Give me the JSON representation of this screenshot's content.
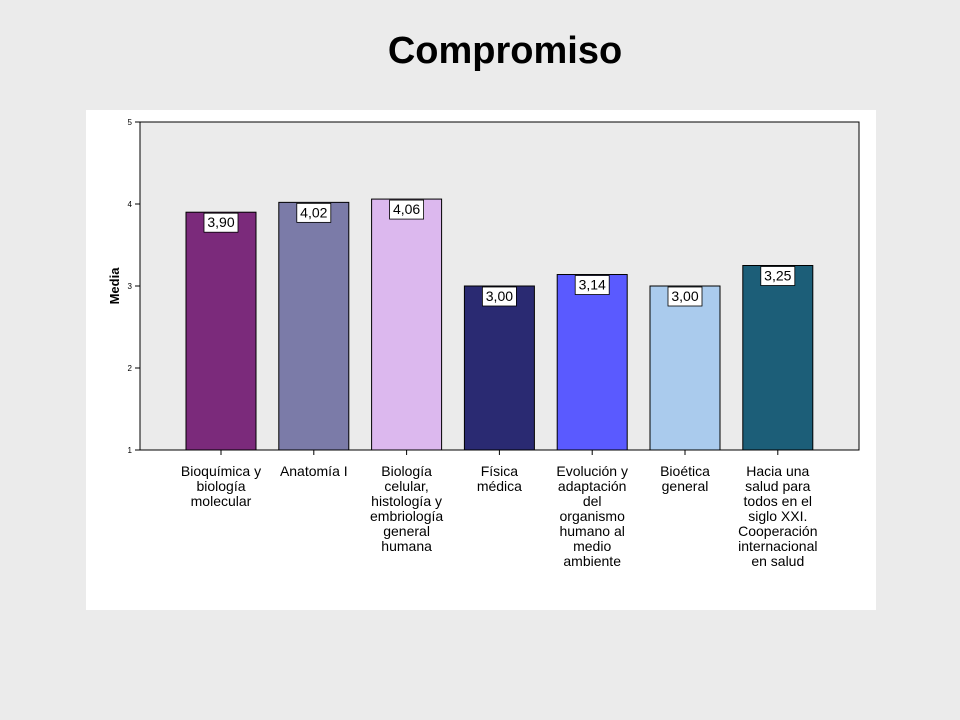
{
  "chart_data": {
    "type": "bar",
    "title": "Compromiso",
    "ylabel": "Media",
    "xlabel": "",
    "ylim": [
      1,
      5
    ],
    "yticks": [
      1,
      2,
      3,
      4,
      5
    ],
    "grid": false,
    "categories": [
      "Bioquímica y\nbiología\nmolecular",
      "Anatomía I",
      "Biología\ncelular,\nhistología y\nembriología\ngeneral\nhumana",
      "Física\nmédica",
      "Evolución y\nadaptación\ndel\norganismo\nhumano al\nmedio\nambiente",
      "Bioética\ngeneral",
      "Hacia una\nsalud para\ntodos en el\nsiglo XXI.\nCooperación\ninternacional\nen salud"
    ],
    "values": [
      3.9,
      4.02,
      4.06,
      3.0,
      3.14,
      3.0,
      3.25
    ],
    "value_labels": [
      "3,90",
      "4,02",
      "4,06",
      "3,00",
      "3,14",
      "3,00",
      "3,25"
    ],
    "colors": [
      "#7b2a7b",
      "#7b7ba8",
      "#dcb8ee",
      "#2a2a72",
      "#5a5aff",
      "#aacbed",
      "#1c5e78"
    ],
    "plot_background": "#ebebeb"
  }
}
